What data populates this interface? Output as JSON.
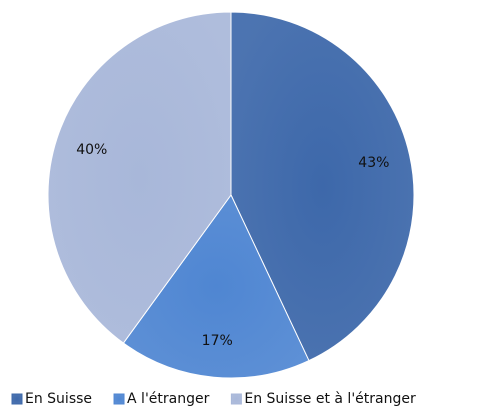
{
  "chart_data": {
    "type": "pie",
    "categories": [
      "En Suisse",
      "A l'étranger",
      "En Suisse et à l'étranger"
    ],
    "values": [
      43,
      17,
      40
    ],
    "value_labels": [
      "43%",
      "17%",
      "40%"
    ],
    "colors": [
      "#3d68aa",
      "#4f86d2",
      "#a8b7d9"
    ],
    "legend": "bottom"
  }
}
